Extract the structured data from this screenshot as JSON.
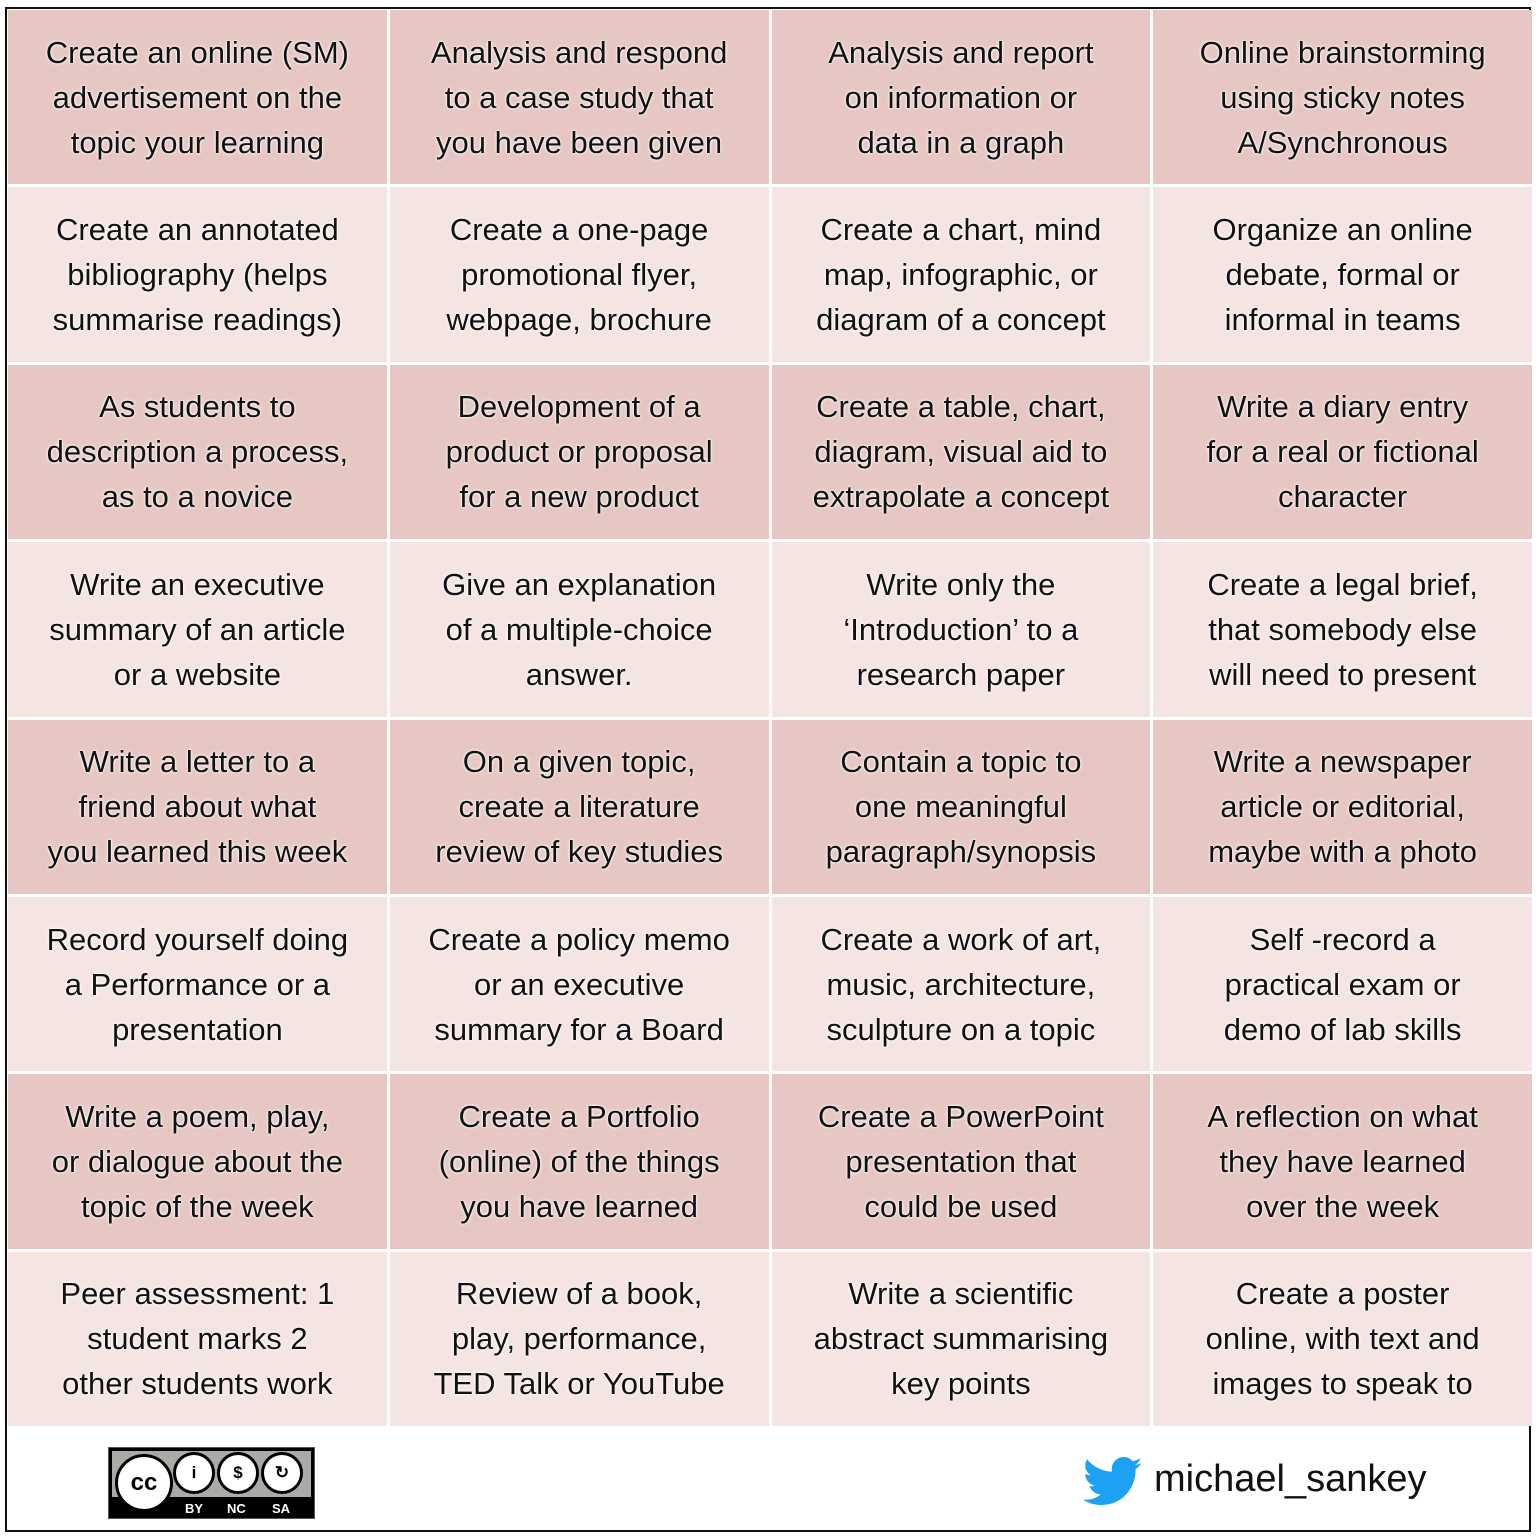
{
  "cells": [
    "Create an online (SM)\nadvertisement on the\ntopic your learning",
    "Analysis and respond\nto a case study that\nyou have been given",
    "Analysis and report\non information or\ndata in a graph",
    "Online brainstorming\nusing sticky notes\nA/Synchronous",
    "Create an annotated\nbibliography (helps\nsummarise readings)",
    "Create a one-page\npromotional flyer,\nwebpage, brochure",
    "Create a chart, mind\nmap, infographic, or\ndiagram of a concept",
    "Organize an online\ndebate, formal or\ninformal in teams",
    "As students to\ndescription a process,\nas to a novice",
    "Development of a\nproduct or proposal\nfor a new product",
    "Create a table, chart,\ndiagram, visual aid to\nextrapolate a concept",
    "Write a diary entry\nfor a real or fictional\ncharacter",
    "Write an executive\nsummary of an article\nor a website",
    "Give an explanation\nof a multiple-choice\nanswer.",
    "Write only the\n‘Introduction’ to a\nresearch paper",
    "Create a legal brief,\nthat somebody else\nwill need to present",
    "Write a letter to a\nfriend about what\nyou learned this week",
    "On a given topic,\ncreate a literature\nreview of key studies",
    "Contain a topic to\none meaningful\nparagraph/synopsis",
    "Write a newspaper\narticle or editorial,\nmaybe with a photo",
    "Record yourself doing\na Performance or a\npresentation",
    "Create a policy memo\nor an executive\nsummary for a Board",
    "Create a work of art,\nmusic, architecture,\nsculpture on a topic",
    "Self -record a\npractical exam or\ndemo of lab skills",
    "Write a poem, play,\nor dialogue about the\ntopic of the week",
    "Create a Portfolio\n(online) of the things\nyou have learned",
    "Create a PowerPoint\npresentation that\ncould be used",
    "A reflection on what\nthey have learned\nover the week",
    "Peer assessment: 1\nstudent marks 2\nother students work",
    "Review of a book,\nplay, performance,\nTED Talk or YouTube",
    "Write a scientific\nabstract summarising\nkey points",
    "Create a poster\nonline, with text and\nimages to speak to"
  ],
  "colors": {
    "row_dark": "#e6c7c3",
    "row_light": "#f4e5e3",
    "twitter": "#1da1f2"
  },
  "footer": {
    "license": {
      "icon": "creative-commons-by-nc-sa",
      "labels": [
        "BY",
        "NC",
        "SA"
      ]
    },
    "social": {
      "icon": "twitter-bird-icon",
      "handle": "michael_sankey"
    }
  }
}
